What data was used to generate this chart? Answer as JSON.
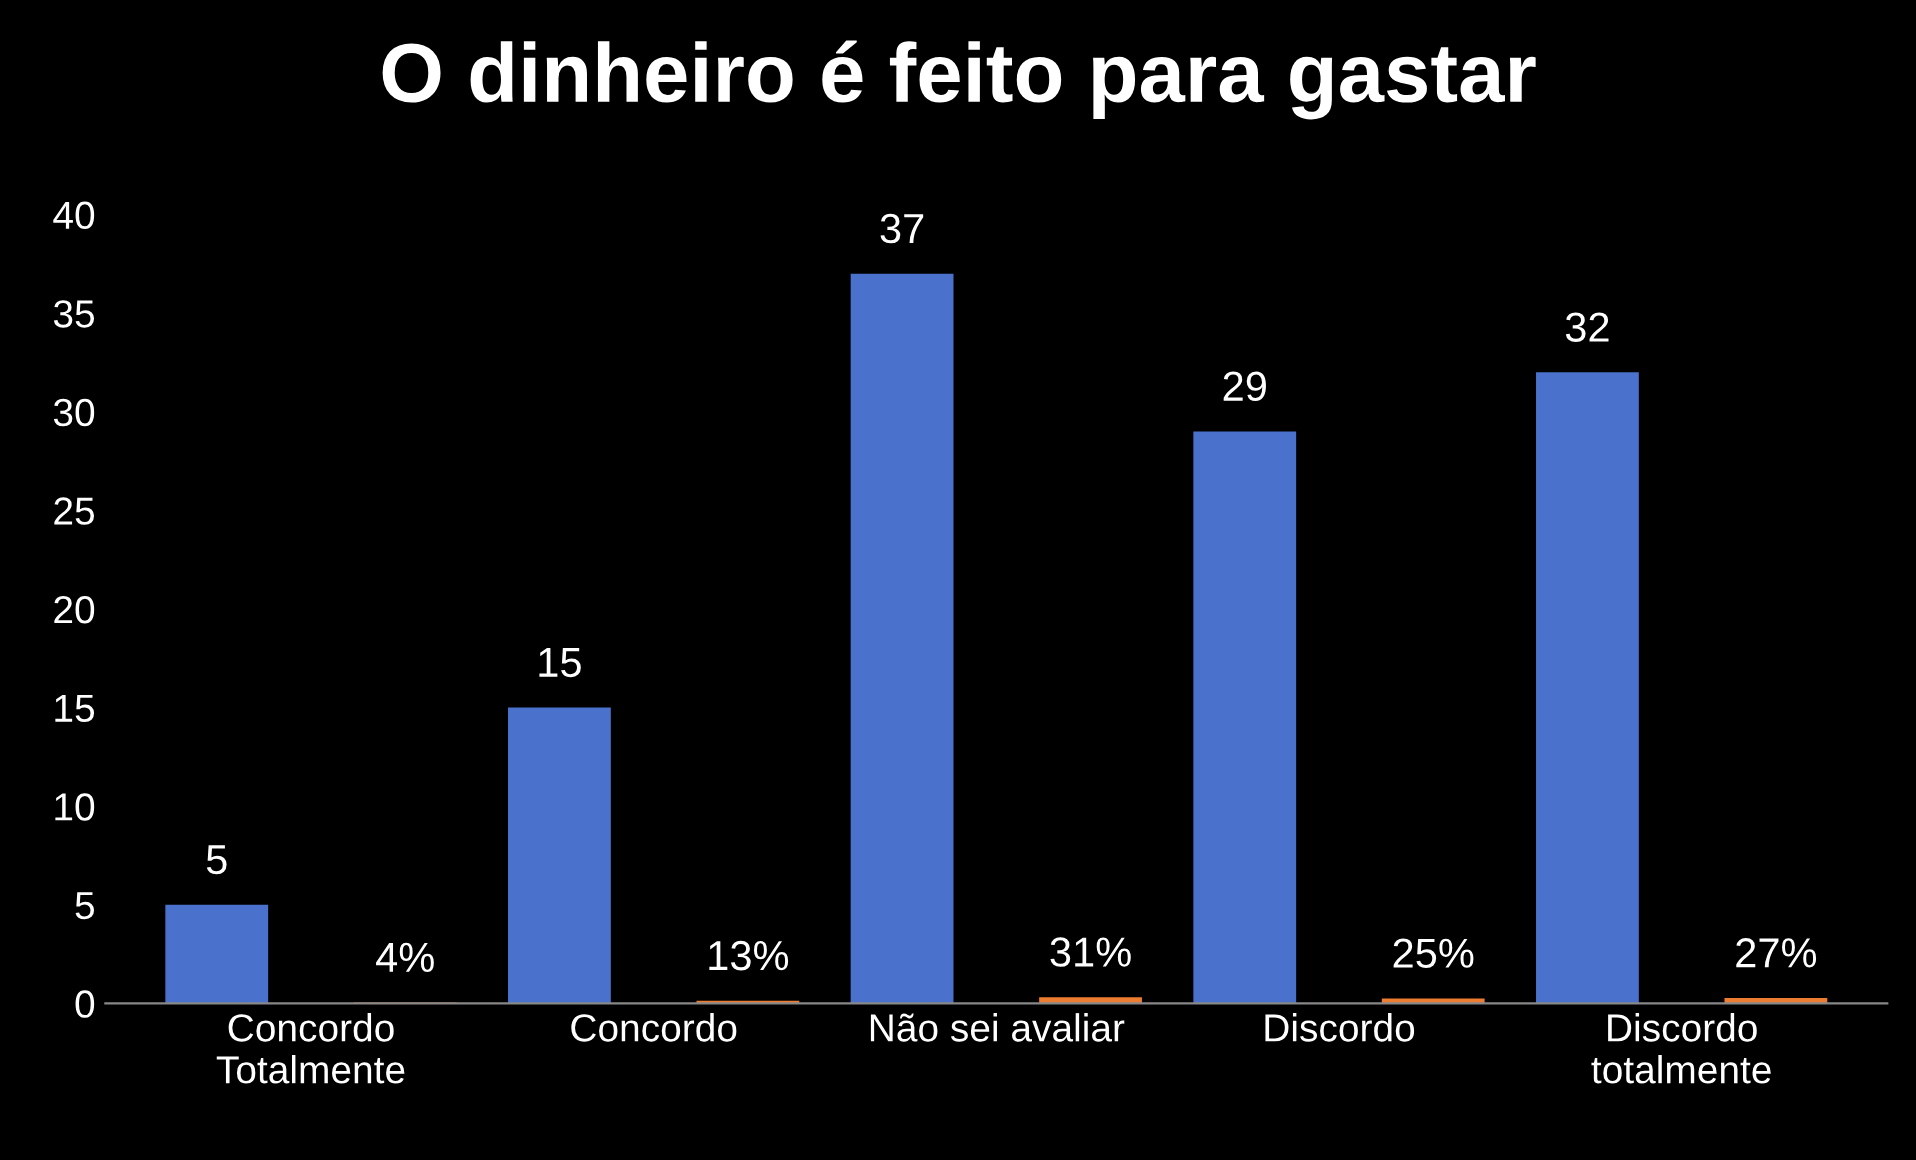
{
  "chart_data": {
    "type": "bar",
    "title": "O dinheiro é feito para gastar",
    "categories": [
      "Concordo\nTotalmente",
      "Concordo",
      "Não sei avaliar",
      "Discordo",
      "Discordo\ntotalmente"
    ],
    "series": [
      {
        "color": "#4a72cc",
        "values": [
          5,
          15,
          37,
          29,
          32
        ],
        "value_labels": [
          "5",
          "15",
          "37",
          "29",
          "32"
        ]
      },
      {
        "color": "#ed7d31",
        "values": [
          0.04,
          0.13,
          0.31,
          0.25,
          0.27
        ],
        "value_labels": [
          "4%",
          "13%",
          "31%",
          "25%",
          "27%"
        ]
      }
    ],
    "ylim": [
      0,
      40
    ],
    "yticks": [
      0,
      5,
      10,
      15,
      20,
      25,
      30,
      35,
      40
    ],
    "grid": false
  }
}
